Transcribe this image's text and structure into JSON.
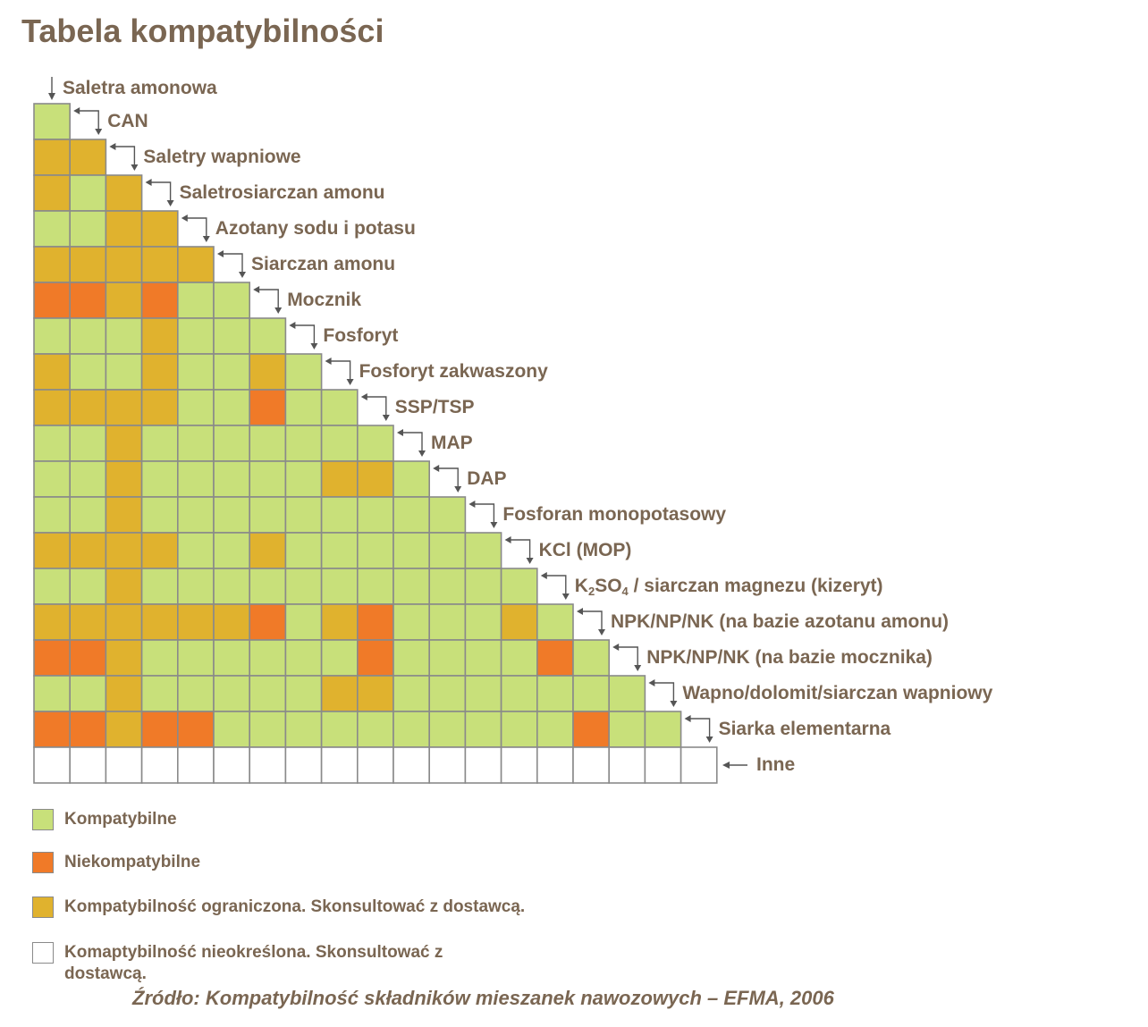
{
  "title": "Tabela kompatybilności",
  "colors": {
    "compatible": "#c8e07a",
    "incompatible": "#f07a28",
    "limited": "#e0b22e",
    "undetermined": "#ffffff",
    "grid_line": "#8a8a8a",
    "text": "#7a6652"
  },
  "labels": [
    {
      "text": "Saletra amonowa"
    },
    {
      "text": "CAN"
    },
    {
      "text": "Saletry wapniowe"
    },
    {
      "text": "Saletrosiarczan amonu"
    },
    {
      "text": "Azotany sodu i potasu"
    },
    {
      "text": "Siarczan amonu"
    },
    {
      "text": "Mocznik"
    },
    {
      "text": "Fosforyt"
    },
    {
      "text": "Fosforyt zakwaszony"
    },
    {
      "text": "SSP/TSP"
    },
    {
      "text": "MAP"
    },
    {
      "text": "DAP"
    },
    {
      "text": "Fosforan monopotasowy"
    },
    {
      "text": "KCl (MOP)"
    },
    {
      "parts": [
        "K",
        "2",
        "SO",
        "4",
        " / siarczan magnezu (kizeryt)"
      ]
    },
    {
      "text": "NPK/NP/NK (na bazie azotanu amonu)"
    },
    {
      "text": "NPK/NP/NK (na bazie mocznika)"
    },
    {
      "text": "Wapno/dolomit/siarczan wapniowy"
    },
    {
      "text": "Siarka elementarna"
    },
    {
      "text": "Inne"
    }
  ],
  "matrix_rows": [
    "G",
    "YY",
    "YGY",
    "GGYY",
    "YYYYY",
    "OOYOGG",
    "GGGYGGG",
    "YGGYGGYG",
    "YYYYGGOGG",
    "GGYGGGGGGG",
    "GGYGGGGGYYG",
    "GGYGGGGGGGGG",
    "YYYYGGYGGGGGG",
    "GGYGGGGGGGGGGG",
    "YYYYYYOGYOGGGYG",
    "OOYGGGGGGOGGGGOG",
    "GGYGGGGGYYGGGGGGG",
    "OOYOOGGGGGGGGGGOGG",
    "WWWWWWWWWWWWWWWWWWW"
  ],
  "legend": [
    {
      "key": "compatible",
      "text": "Kompatybilne"
    },
    {
      "key": "incompatible",
      "text": "Niekompatybilne"
    },
    {
      "key": "limited",
      "text": "Kompatybilność ograniczona. Skonsultować z dostawcą."
    },
    {
      "key": "undetermined",
      "text": "Komaptybilność nieokreślona. Skonsultować z dostawcą."
    }
  ],
  "source": "Źródło: Kompatybilność składników mieszanek nawozowych – EFMA, 2006"
}
